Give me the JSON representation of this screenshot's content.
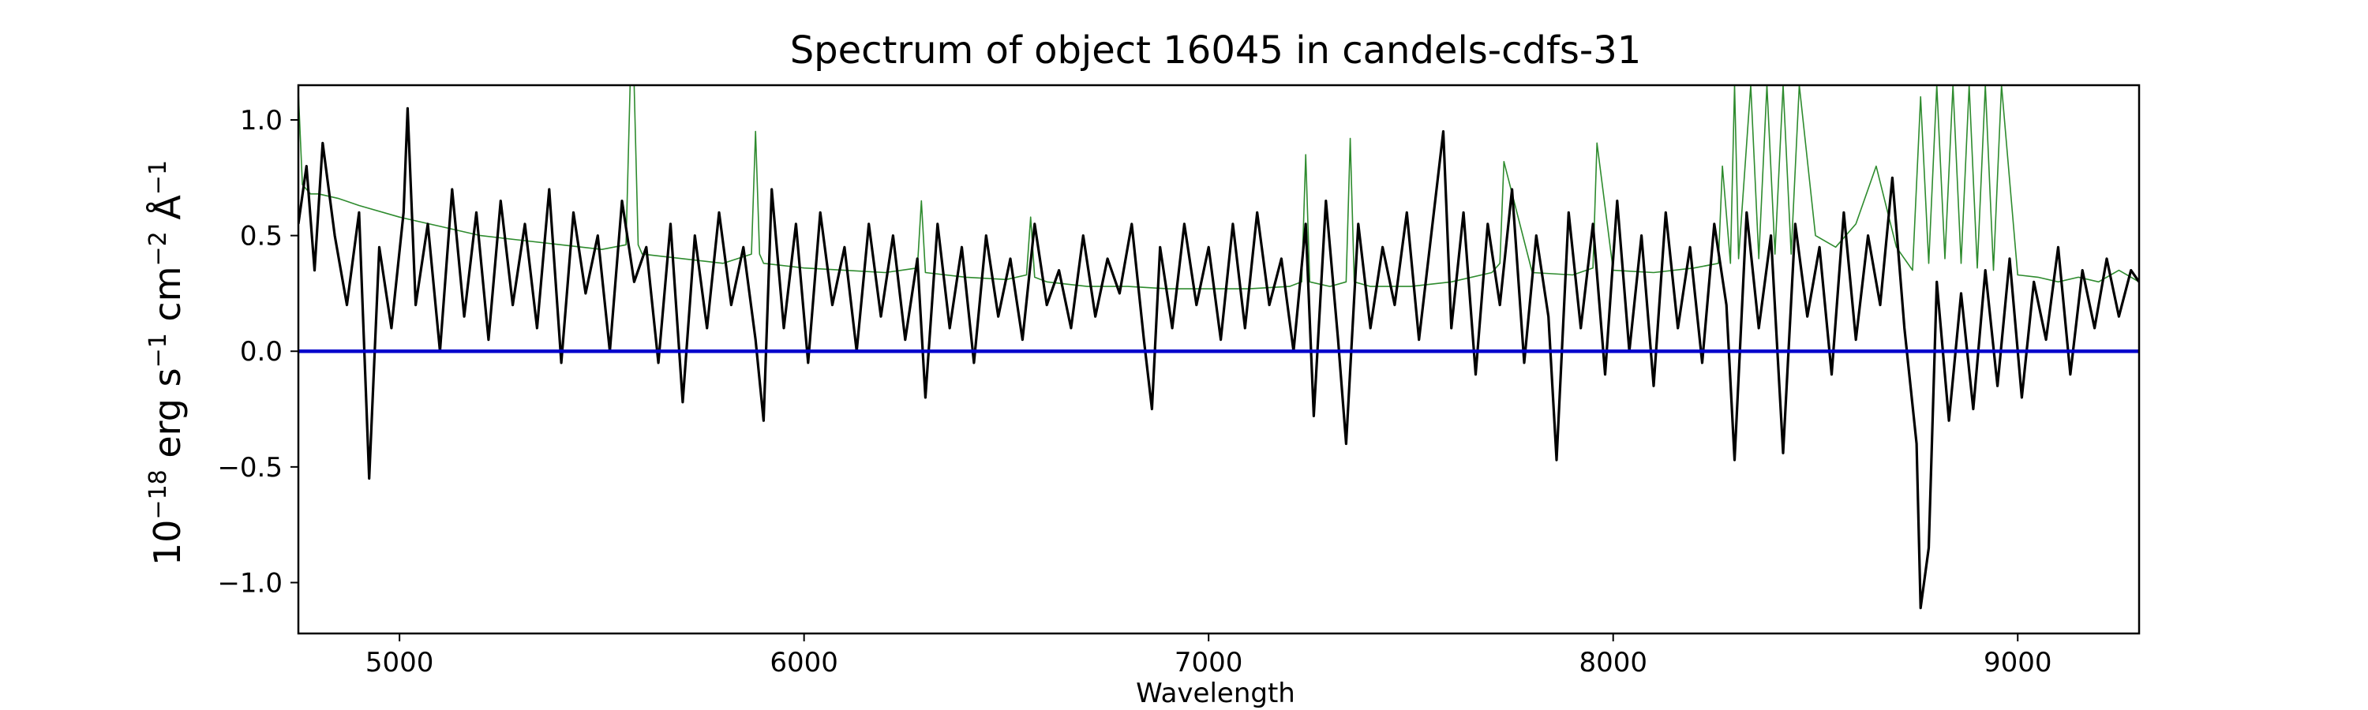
{
  "chart_data": {
    "type": "line",
    "title": "Spectrum of object 16045 in candels-cdfs-31",
    "xlabel": "Wavelength",
    "ylabel": {
      "base": "10",
      "exp1": "−18",
      "part1": " erg s",
      "exp2": "−1",
      "part2": " cm",
      "exp3": "−2",
      "part3": " Å",
      "exp4": "−1"
    },
    "xlim": [
      4750,
      9300
    ],
    "ylim": [
      -1.22,
      1.15
    ],
    "x_ticks": [
      {
        "value": 5000,
        "label": "5000"
      },
      {
        "value": 6000,
        "label": "6000"
      },
      {
        "value": 7000,
        "label": "7000"
      },
      {
        "value": 8000,
        "label": "8000"
      },
      {
        "value": 9000,
        "label": "9000"
      }
    ],
    "y_ticks": [
      {
        "value": 1.0,
        "label": "1.0"
      },
      {
        "value": 0.5,
        "label": "0.5"
      },
      {
        "value": 0.0,
        "label": "0.0"
      },
      {
        "value": -0.5,
        "label": "−0.5"
      },
      {
        "value": -1.0,
        "label": "−1.0"
      }
    ],
    "grid": false,
    "series": [
      {
        "role": "flux",
        "color": "#000000",
        "x": [
          4750,
          4770,
          4790,
          4810,
          4840,
          4870,
          4900,
          4925,
          4950,
          4980,
          5010,
          5020,
          5040,
          5070,
          5100,
          5130,
          5160,
          5190,
          5220,
          5250,
          5280,
          5310,
          5340,
          5370,
          5400,
          5430,
          5460,
          5490,
          5520,
          5550,
          5580,
          5610,
          5640,
          5670,
          5700,
          5730,
          5760,
          5790,
          5820,
          5850,
          5880,
          5900,
          5920,
          5950,
          5980,
          6010,
          6040,
          6070,
          6100,
          6130,
          6160,
          6190,
          6220,
          6250,
          6280,
          6300,
          6330,
          6360,
          6390,
          6420,
          6450,
          6480,
          6510,
          6540,
          6570,
          6600,
          6630,
          6660,
          6690,
          6720,
          6750,
          6780,
          6810,
          6840,
          6860,
          6880,
          6910,
          6940,
          6970,
          7000,
          7030,
          7060,
          7090,
          7120,
          7150,
          7180,
          7210,
          7240,
          7260,
          7290,
          7320,
          7340,
          7370,
          7400,
          7430,
          7460,
          7490,
          7520,
          7550,
          7580,
          7600,
          7630,
          7660,
          7690,
          7720,
          7750,
          7780,
          7810,
          7840,
          7860,
          7890,
          7920,
          7950,
          7980,
          8010,
          8040,
          8070,
          8100,
          8130,
          8160,
          8190,
          8220,
          8250,
          8280,
          8300,
          8330,
          8360,
          8390,
          8420,
          8450,
          8480,
          8510,
          8540,
          8570,
          8600,
          8630,
          8660,
          8690,
          8720,
          8750,
          8760,
          8780,
          8800,
          8830,
          8860,
          8890,
          8920,
          8950,
          8980,
          9010,
          9040,
          9070,
          9100,
          9130,
          9160,
          9190,
          9220,
          9250,
          9280,
          9300
        ],
        "y": [
          0.55,
          0.8,
          0.35,
          0.9,
          0.5,
          0.2,
          0.6,
          -0.55,
          0.45,
          0.1,
          0.6,
          1.05,
          0.2,
          0.55,
          0.0,
          0.7,
          0.15,
          0.6,
          0.05,
          0.65,
          0.2,
          0.55,
          0.1,
          0.7,
          -0.05,
          0.6,
          0.25,
          0.5,
          0.0,
          0.65,
          0.3,
          0.45,
          -0.05,
          0.55,
          -0.22,
          0.5,
          0.1,
          0.6,
          0.2,
          0.45,
          0.05,
          -0.3,
          0.7,
          0.1,
          0.55,
          -0.05,
          0.6,
          0.2,
          0.45,
          0.0,
          0.55,
          0.15,
          0.5,
          0.05,
          0.4,
          -0.2,
          0.55,
          0.1,
          0.45,
          -0.05,
          0.5,
          0.15,
          0.4,
          0.05,
          0.55,
          0.2,
          0.35,
          0.1,
          0.5,
          0.15,
          0.4,
          0.25,
          0.55,
          0.05,
          -0.25,
          0.45,
          0.1,
          0.55,
          0.2,
          0.45,
          0.05,
          0.55,
          0.1,
          0.6,
          0.2,
          0.4,
          0.0,
          0.55,
          -0.28,
          0.65,
          0.05,
          -0.4,
          0.55,
          0.1,
          0.45,
          0.2,
          0.6,
          0.05,
          0.5,
          0.95,
          0.1,
          0.6,
          -0.1,
          0.55,
          0.2,
          0.7,
          -0.05,
          0.5,
          0.15,
          -0.47,
          0.6,
          0.1,
          0.55,
          -0.1,
          0.65,
          0.0,
          0.5,
          -0.15,
          0.6,
          0.1,
          0.45,
          -0.05,
          0.55,
          0.2,
          -0.47,
          0.6,
          0.1,
          0.5,
          -0.44,
          0.55,
          0.15,
          0.45,
          -0.1,
          0.6,
          0.05,
          0.5,
          0.2,
          0.75,
          0.1,
          -0.4,
          -1.11,
          -0.85,
          0.3,
          -0.3,
          0.25,
          -0.25,
          0.35,
          -0.15,
          0.4,
          -0.2,
          0.3,
          0.05,
          0.45,
          -0.1,
          0.35,
          0.1,
          0.4,
          0.15,
          0.35,
          0.3
        ]
      },
      {
        "role": "noise",
        "color": "#2e8b2e",
        "x": [
          4750,
          4760,
          4780,
          4800,
          4850,
          4900,
          5000,
          5100,
          5200,
          5300,
          5400,
          5500,
          5560,
          5570,
          5580,
          5590,
          5600,
          5700,
          5800,
          5870,
          5880,
          5890,
          5900,
          6000,
          6100,
          6200,
          6280,
          6290,
          6300,
          6400,
          6500,
          6550,
          6560,
          6570,
          6600,
          6700,
          6800,
          6900,
          7000,
          7100,
          7200,
          7230,
          7240,
          7250,
          7300,
          7340,
          7350,
          7360,
          7400,
          7500,
          7600,
          7700,
          7720,
          7730,
          7800,
          7900,
          7950,
          7960,
          8000,
          8100,
          8200,
          8260,
          8270,
          8290,
          8300,
          8310,
          8340,
          8360,
          8380,
          8400,
          8420,
          8440,
          8460,
          8500,
          8550,
          8600,
          8650,
          8700,
          8740,
          8760,
          8780,
          8800,
          8820,
          8840,
          8860,
          8880,
          8900,
          8920,
          8940,
          8960,
          9000,
          9050,
          9100,
          9150,
          9200,
          9250,
          9300
        ],
        "y": [
          1.12,
          0.72,
          0.68,
          0.68,
          0.66,
          0.63,
          0.58,
          0.54,
          0.5,
          0.48,
          0.46,
          0.44,
          0.46,
          1.15,
          1.15,
          0.46,
          0.42,
          0.4,
          0.38,
          0.42,
          0.95,
          0.42,
          0.38,
          0.36,
          0.35,
          0.34,
          0.36,
          0.65,
          0.34,
          0.32,
          0.31,
          0.33,
          0.58,
          0.32,
          0.3,
          0.28,
          0.28,
          0.27,
          0.27,
          0.27,
          0.28,
          0.3,
          0.85,
          0.3,
          0.28,
          0.3,
          0.92,
          0.3,
          0.28,
          0.28,
          0.3,
          0.34,
          0.38,
          0.82,
          0.34,
          0.33,
          0.36,
          0.9,
          0.35,
          0.34,
          0.36,
          0.38,
          0.8,
          0.38,
          1.15,
          0.4,
          1.15,
          0.4,
          1.15,
          0.42,
          1.15,
          0.42,
          1.15,
          0.5,
          0.45,
          0.55,
          0.8,
          0.45,
          0.35,
          1.1,
          0.38,
          1.15,
          0.4,
          1.15,
          0.38,
          1.15,
          0.36,
          1.15,
          0.35,
          1.15,
          0.33,
          0.32,
          0.3,
          0.32,
          0.3,
          0.35,
          0.3
        ]
      },
      {
        "role": "zero",
        "color": "#0000cc",
        "x": [
          4750,
          9300
        ],
        "y": [
          0.0,
          0.0
        ]
      }
    ]
  }
}
